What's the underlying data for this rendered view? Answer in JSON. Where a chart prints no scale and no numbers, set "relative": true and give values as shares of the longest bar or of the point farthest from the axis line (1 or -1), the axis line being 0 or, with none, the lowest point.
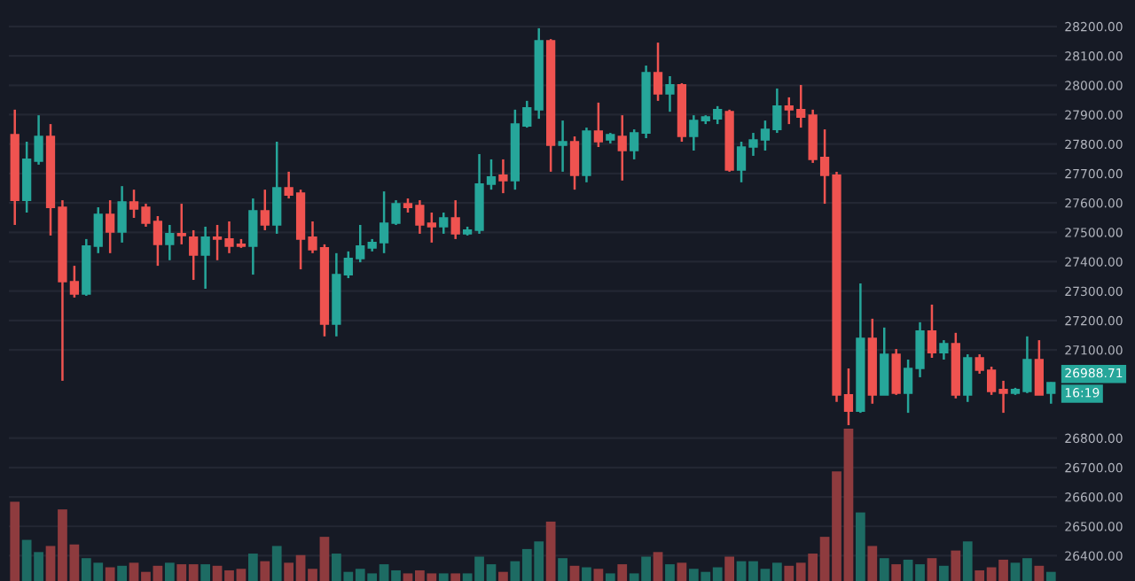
{
  "chart_data": [
    {
      "type": "candlestick",
      "categories": [
        null,
        null,
        null,
        null,
        null,
        null,
        null,
        null,
        null,
        null,
        null,
        null,
        null,
        null,
        null,
        null,
        null,
        null,
        null,
        null,
        null,
        null,
        null,
        null,
        null,
        null,
        null,
        null,
        null,
        null,
        null,
        null,
        null,
        null,
        null,
        null,
        null,
        null,
        null,
        null,
        null,
        null,
        null,
        null,
        null,
        null,
        null,
        null,
        null,
        null,
        null,
        null,
        null,
        null,
        null,
        null,
        null,
        null,
        null,
        null,
        null,
        null,
        null,
        null,
        null,
        null,
        null,
        null,
        null,
        null,
        null,
        null,
        null,
        null,
        null,
        null,
        null,
        null,
        null,
        null,
        null,
        null,
        null,
        null,
        null,
        null,
        null,
        null
      ],
      "ohlc": [
        [
          27832,
          27917,
          27525,
          27609
        ],
        [
          27609,
          27808,
          27567,
          27748
        ],
        [
          27742,
          27898,
          27730,
          27826
        ],
        [
          27826,
          27868,
          27489,
          27585
        ],
        [
          27585,
          27609,
          26995,
          27332
        ],
        [
          27332,
          27386,
          27278,
          27290
        ],
        [
          27290,
          27477,
          27284,
          27453
        ],
        [
          27453,
          27585,
          27429,
          27561
        ],
        [
          27561,
          27609,
          27429,
          27501
        ],
        [
          27501,
          27657,
          27465,
          27603
        ],
        [
          27603,
          27645,
          27549,
          27579
        ],
        [
          27585,
          27597,
          27519,
          27531
        ],
        [
          27537,
          27555,
          27386,
          27459
        ],
        [
          27459,
          27525,
          27405,
          27495
        ],
        [
          27495,
          27597,
          27459,
          27489
        ],
        [
          27483,
          27507,
          27338,
          27423
        ],
        [
          27423,
          27519,
          27308,
          27483
        ],
        [
          27483,
          27525,
          27405,
          27477
        ],
        [
          27477,
          27537,
          27429,
          27453
        ],
        [
          27459,
          27477,
          27447,
          27453
        ],
        [
          27453,
          27615,
          27356,
          27573
        ],
        [
          27573,
          27645,
          27507,
          27525
        ],
        [
          27525,
          27808,
          27495,
          27651
        ],
        [
          27651,
          27706,
          27615,
          27627
        ],
        [
          27633,
          27645,
          27374,
          27477
        ],
        [
          27483,
          27537,
          27429,
          27441
        ],
        [
          27447,
          27459,
          27146,
          27188
        ],
        [
          27188,
          27429,
          27146,
          27356
        ],
        [
          27356,
          27435,
          27344,
          27411
        ],
        [
          27411,
          27525,
          27398,
          27453
        ],
        [
          27447,
          27477,
          27435,
          27465
        ],
        [
          27465,
          27639,
          27429,
          27531
        ],
        [
          27531,
          27609,
          27525,
          27597
        ],
        [
          27597,
          27615,
          27567,
          27585
        ],
        [
          27591,
          27609,
          27495,
          27525
        ],
        [
          27531,
          27567,
          27465,
          27519
        ],
        [
          27519,
          27567,
          27495,
          27549
        ],
        [
          27549,
          27609,
          27477,
          27495
        ],
        [
          27495,
          27519,
          27489,
          27507
        ],
        [
          27507,
          27766,
          27495,
          27664
        ],
        [
          27664,
          27748,
          27645,
          27688
        ],
        [
          27694,
          27748,
          27633,
          27676
        ],
        [
          27676,
          27917,
          27645,
          27868
        ],
        [
          27862,
          27947,
          27856,
          27923
        ],
        [
          27917,
          28194,
          27886,
          28151
        ],
        [
          28151,
          28157,
          27706,
          27796
        ],
        [
          27796,
          27880,
          27706,
          27808
        ],
        [
          27808,
          27826,
          27645,
          27694
        ],
        [
          27694,
          27856,
          27670,
          27844
        ],
        [
          27844,
          27941,
          27790,
          27808
        ],
        [
          27814,
          27838,
          27802,
          27832
        ],
        [
          27826,
          27898,
          27676,
          27778
        ],
        [
          27778,
          27850,
          27748,
          27838
        ],
        [
          27838,
          28067,
          27820,
          28043
        ],
        [
          28043,
          28145,
          27947,
          27971
        ],
        [
          27971,
          28031,
          27910,
          28001
        ],
        [
          28001,
          28007,
          27808,
          27826
        ],
        [
          27826,
          27898,
          27778,
          27880
        ],
        [
          27880,
          27898,
          27868,
          27892
        ],
        [
          27886,
          27929,
          27868,
          27917
        ],
        [
          27910,
          27917,
          27706,
          27712
        ],
        [
          27712,
          27808,
          27670,
          27790
        ],
        [
          27790,
          27838,
          27760,
          27814
        ],
        [
          27814,
          27880,
          27778,
          27850
        ],
        [
          27850,
          27989,
          27838,
          27929
        ],
        [
          27929,
          27959,
          27868,
          27917
        ],
        [
          27917,
          28001,
          27856,
          27892
        ],
        [
          27898,
          27917,
          27736,
          27748
        ],
        [
          27754,
          27850,
          27597,
          27694
        ],
        [
          27694,
          27706,
          26923,
          26947
        ],
        [
          26947,
          27037,
          26844,
          26892
        ],
        [
          26892,
          27326,
          26886,
          27139
        ],
        [
          27139,
          27206,
          26917,
          26947
        ],
        [
          26947,
          27176,
          26947,
          27085
        ],
        [
          27085,
          27103,
          26947,
          26953
        ],
        [
          26953,
          27067,
          26886,
          27037
        ],
        [
          27037,
          27194,
          27007,
          27164
        ],
        [
          27164,
          27254,
          27073,
          27091
        ],
        [
          27091,
          27133,
          27067,
          27121
        ],
        [
          27121,
          27158,
          26935,
          26947
        ],
        [
          26947,
          27085,
          26923,
          27073
        ],
        [
          27073,
          27085,
          27019,
          27031
        ],
        [
          27031,
          27043,
          26947,
          26959
        ],
        [
          26965,
          26995,
          26886,
          26953
        ],
        [
          26953,
          26971,
          26947,
          26965
        ],
        [
          26959,
          27146,
          26953,
          27067
        ],
        [
          27067,
          27133,
          26947,
          26947
        ],
        [
          26953,
          26990,
          26917,
          26988.71
        ]
      ],
      "colors": [
        "#ef5350",
        "#26a69a",
        "#26a69a",
        "#ef5350",
        "#ef5350",
        "#ef5350",
        "#26a69a",
        "#26a69a",
        "#ef5350",
        "#26a69a",
        "#ef5350",
        "#ef5350",
        "#ef5350",
        "#26a69a",
        "#ef5350",
        "#ef5350",
        "#26a69a",
        "#ef5350",
        "#ef5350",
        "#ef5350",
        "#26a69a",
        "#ef5350",
        "#26a69a",
        "#ef5350",
        "#ef5350",
        "#ef5350",
        "#ef5350",
        "#26a69a",
        "#26a69a",
        "#26a69a",
        "#26a69a",
        "#26a69a",
        "#26a69a",
        "#ef5350",
        "#ef5350",
        "#ef5350",
        "#26a69a",
        "#ef5350",
        "#26a69a",
        "#26a69a",
        "#26a69a",
        "#ef5350",
        "#26a69a",
        "#26a69a",
        "#26a69a",
        "#ef5350",
        "#26a69a",
        "#ef5350",
        "#26a69a",
        "#ef5350",
        "#26a69a",
        "#ef5350",
        "#26a69a",
        "#26a69a",
        "#ef5350",
        "#26a69a",
        "#ef5350",
        "#26a69a",
        "#26a69a",
        "#26a69a",
        "#ef5350",
        "#26a69a",
        "#26a69a",
        "#26a69a",
        "#26a69a",
        "#ef5350",
        "#ef5350",
        "#ef5350",
        "#ef5350",
        "#ef5350",
        "#ef5350",
        "#26a69a",
        "#ef5350",
        "#26a69a",
        "#ef5350",
        "#26a69a",
        "#26a69a",
        "#ef5350",
        "#26a69a",
        "#ef5350",
        "#26a69a",
        "#ef5350",
        "#ef5350",
        "#ef5350",
        "#26a69a",
        "#26a69a",
        "#ef5350",
        "#26a69a"
      ],
      "ylim": [
        26314,
        28290
      ],
      "yticks": [
        {
          "value": 28200,
          "label": "28200.00"
        },
        {
          "value": 28100,
          "label": "28100.00"
        },
        {
          "value": 28000,
          "label": "28000.00"
        },
        {
          "value": 27900,
          "label": "27900.00"
        },
        {
          "value": 27800,
          "label": "27800.00"
        },
        {
          "value": 27700,
          "label": "27700.00"
        },
        {
          "value": 27600,
          "label": "27600.00"
        },
        {
          "value": 27500,
          "label": "27500.00"
        },
        {
          "value": 27400,
          "label": "27400.00"
        },
        {
          "value": 27300,
          "label": "27300.00"
        },
        {
          "value": 27200,
          "label": "27200.00"
        },
        {
          "value": 27100,
          "label": "27100.00"
        },
        {
          "value": 26800,
          "label": "26800.00"
        },
        {
          "value": 26700,
          "label": "26700.00"
        },
        {
          "value": 26600,
          "label": "26600.00"
        },
        {
          "value": 26500,
          "label": "26500.00"
        },
        {
          "value": 26400,
          "label": "26400.00"
        }
      ],
      "tick_labels": "y",
      "grid": "y",
      "annotations": [
        "26988.71",
        "16:19"
      ]
    },
    {
      "type": "bar",
      "relative": true,
      "categories": [
        null,
        null,
        null,
        null,
        null,
        null,
        null,
        null,
        null,
        null,
        null,
        null,
        null,
        null,
        null,
        null,
        null,
        null,
        null,
        null,
        null,
        null,
        null,
        null,
        null,
        null,
        null,
        null,
        null,
        null,
        null,
        null,
        null,
        null,
        null,
        null,
        null,
        null,
        null,
        null,
        null,
        null,
        null,
        null,
        null,
        null,
        null,
        null,
        null,
        null,
        null,
        null,
        null,
        null,
        null,
        null,
        null,
        null,
        null,
        null,
        null,
        null,
        null,
        null,
        null,
        null,
        null,
        null,
        null,
        null,
        null,
        null,
        null,
        null,
        null,
        null,
        null,
        null,
        null,
        null,
        null,
        null,
        null,
        null,
        null,
        null,
        null,
        null
      ],
      "values": [
        0.52,
        0.27,
        0.19,
        0.23,
        0.47,
        0.24,
        0.15,
        0.12,
        0.09,
        0.1,
        0.12,
        0.06,
        0.1,
        0.12,
        0.11,
        0.11,
        0.11,
        0.1,
        0.07,
        0.08,
        0.18,
        0.13,
        0.23,
        0.12,
        0.17,
        0.08,
        0.29,
        0.18,
        0.06,
        0.08,
        0.05,
        0.11,
        0.07,
        0.05,
        0.07,
        0.05,
        0.05,
        0.05,
        0.05,
        0.16,
        0.11,
        0.06,
        0.13,
        0.21,
        0.26,
        0.39,
        0.15,
        0.1,
        0.09,
        0.08,
        0.05,
        0.11,
        0.05,
        0.16,
        0.19,
        0.11,
        0.12,
        0.08,
        0.06,
        0.09,
        0.16,
        0.13,
        0.13,
        0.08,
        0.12,
        0.1,
        0.12,
        0.18,
        0.29,
        0.72,
        1.0,
        0.45,
        0.23,
        0.15,
        0.11,
        0.14,
        0.11,
        0.15,
        0.1,
        0.2,
        0.26,
        0.07,
        0.09,
        0.14,
        0.12,
        0.15,
        0.1,
        0.06
      ],
      "colors": [
        "#8e3b3e",
        "#1d6b63",
        "#1d6b63",
        "#8e3b3e",
        "#8e3b3e",
        "#8e3b3e",
        "#1d6b63",
        "#1d6b63",
        "#8e3b3e",
        "#1d6b63",
        "#8e3b3e",
        "#8e3b3e",
        "#8e3b3e",
        "#1d6b63",
        "#8e3b3e",
        "#8e3b3e",
        "#1d6b63",
        "#8e3b3e",
        "#8e3b3e",
        "#8e3b3e",
        "#1d6b63",
        "#8e3b3e",
        "#1d6b63",
        "#8e3b3e",
        "#8e3b3e",
        "#8e3b3e",
        "#8e3b3e",
        "#1d6b63",
        "#1d6b63",
        "#1d6b63",
        "#1d6b63",
        "#1d6b63",
        "#1d6b63",
        "#8e3b3e",
        "#8e3b3e",
        "#8e3b3e",
        "#1d6b63",
        "#8e3b3e",
        "#1d6b63",
        "#1d6b63",
        "#1d6b63",
        "#8e3b3e",
        "#1d6b63",
        "#1d6b63",
        "#1d6b63",
        "#8e3b3e",
        "#1d6b63",
        "#8e3b3e",
        "#1d6b63",
        "#8e3b3e",
        "#1d6b63",
        "#8e3b3e",
        "#1d6b63",
        "#1d6b63",
        "#8e3b3e",
        "#1d6b63",
        "#8e3b3e",
        "#1d6b63",
        "#1d6b63",
        "#1d6b63",
        "#8e3b3e",
        "#1d6b63",
        "#1d6b63",
        "#1d6b63",
        "#1d6b63",
        "#8e3b3e",
        "#8e3b3e",
        "#8e3b3e",
        "#8e3b3e",
        "#8e3b3e",
        "#8e3b3e",
        "#1d6b63",
        "#8e3b3e",
        "#1d6b63",
        "#8e3b3e",
        "#1d6b63",
        "#1d6b63",
        "#8e3b3e",
        "#1d6b63",
        "#8e3b3e",
        "#1d6b63",
        "#8e3b3e",
        "#8e3b3e",
        "#8e3b3e",
        "#1d6b63",
        "#1d6b63",
        "#8e3b3e",
        "#1d6b63"
      ],
      "tick_labels": false
    }
  ]
}
